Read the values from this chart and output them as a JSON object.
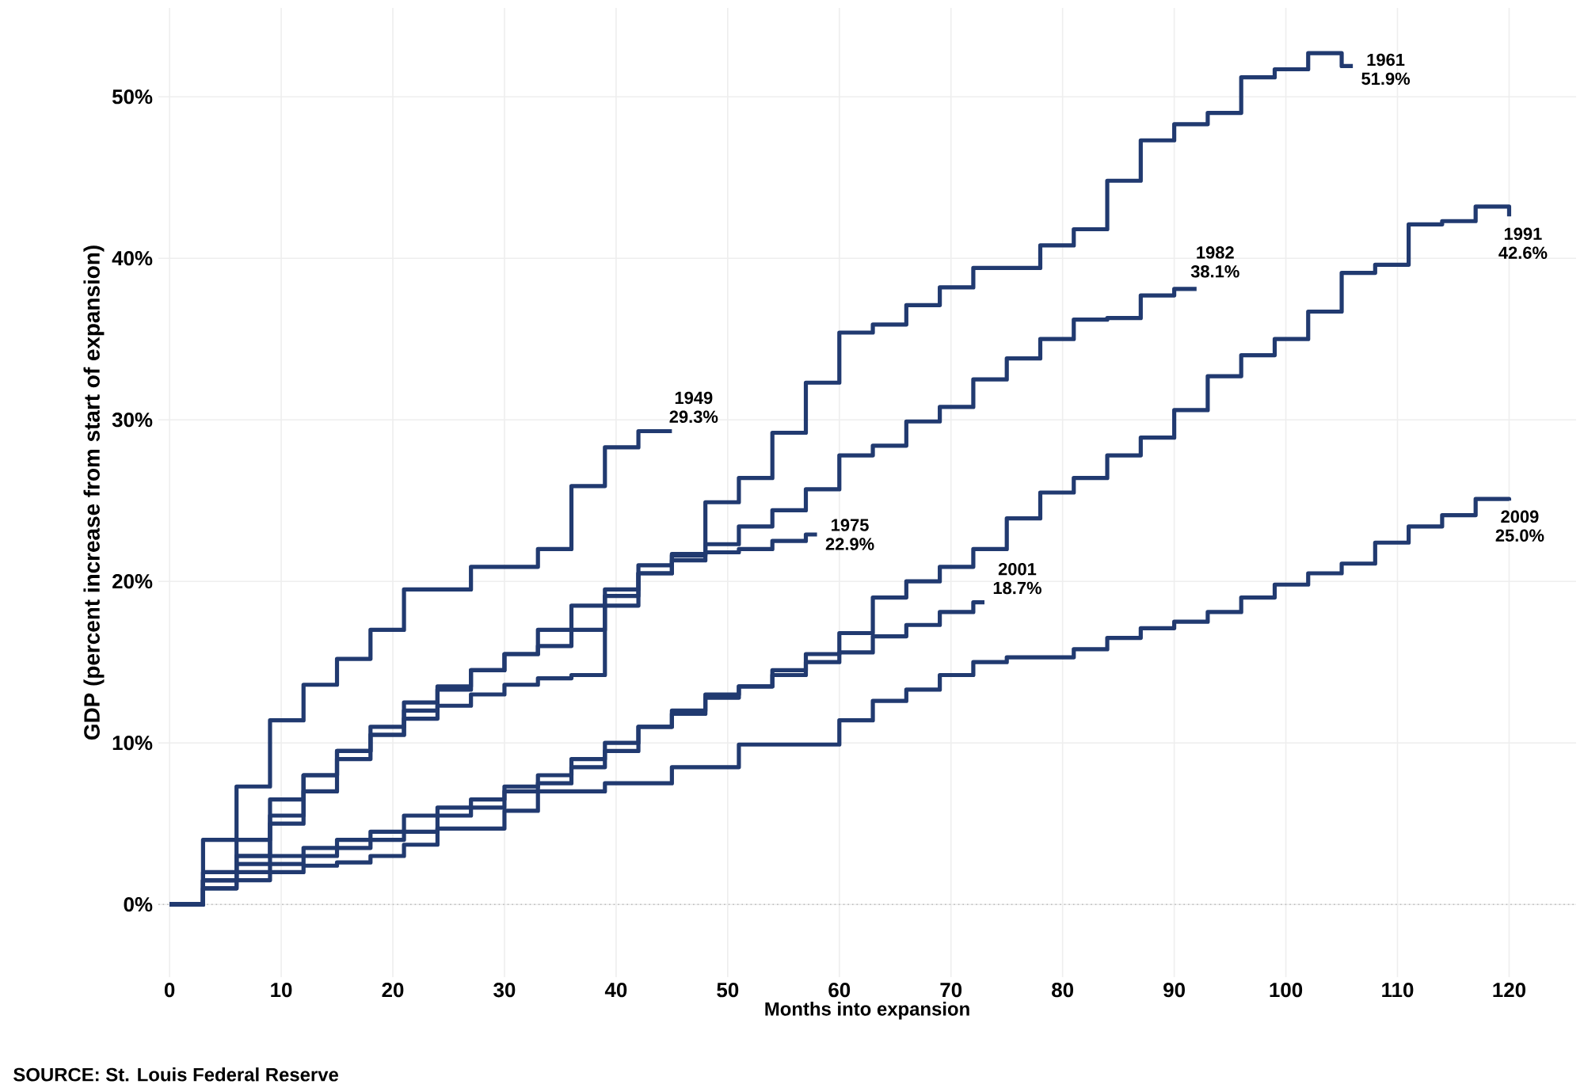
{
  "chart_data": {
    "type": "step",
    "xlabel": "Months into expansion",
    "ylabel": "GDP (percent increase from start of expansion)",
    "annotations": [
      "SOURCE: St. Louis Federal Reserve"
    ],
    "xlim": [
      -1,
      126
    ],
    "xticks": [
      0,
      10,
      20,
      30,
      40,
      50,
      60,
      70,
      80,
      90,
      100,
      110,
      120
    ],
    "ylim": [
      -4.5,
      55.5
    ],
    "yticks": [
      {
        "value": 0,
        "label": "0%"
      },
      {
        "value": 10,
        "label": "10%"
      },
      {
        "value": 20,
        "label": "20%"
      },
      {
        "value": 30,
        "label": "30%"
      },
      {
        "value": 40,
        "label": "40%"
      },
      {
        "value": 50,
        "label": "50%"
      }
    ],
    "grid": true,
    "marker": "none",
    "line_style": "solid",
    "ref_lines": [
      {
        "axis": "y",
        "value": 0,
        "line_style": "dotted",
        "color": "#bbbbbb"
      }
    ],
    "series": [
      {
        "name": "1949",
        "color": "#213a70",
        "x": [
          0,
          3,
          6,
          9,
          12,
          15,
          18,
          21,
          24,
          27,
          30,
          33,
          36,
          39,
          42,
          45
        ],
        "values": [
          0,
          4.0,
          7.3,
          11.4,
          13.6,
          15.2,
          17,
          19.5,
          19.5,
          20.9,
          20.9,
          22,
          25.9,
          28.3,
          29.3,
          29.3
        ],
        "value_labels": [
          null,
          null,
          null,
          null,
          null,
          null,
          null,
          null,
          null,
          null,
          null,
          null,
          null,
          null,
          null,
          "29.3%"
        ]
      },
      {
        "name": "1961",
        "color": "#213a70",
        "x": [
          0,
          3,
          6,
          9,
          12,
          15,
          18,
          21,
          24,
          27,
          30,
          33,
          36,
          39,
          42,
          45,
          48,
          51,
          54,
          57,
          60,
          63,
          66,
          69,
          72,
          75,
          78,
          81,
          84,
          87,
          90,
          93,
          96,
          99,
          102,
          105,
          106
        ],
        "values": [
          0,
          1.5,
          3,
          5.5,
          8,
          9.5,
          11,
          12.5,
          13.5,
          14.5,
          15.5,
          16,
          17,
          18.5,
          21,
          21.7,
          24.9,
          26.4,
          29.2,
          32.3,
          35.4,
          35.9,
          37.1,
          38.2,
          39.4,
          39.4,
          40.8,
          41.8,
          44.8,
          47.3,
          48.3,
          49.0,
          51.2,
          51.7,
          52.7,
          51.9,
          51.9
        ],
        "value_labels": [
          null,
          null,
          null,
          null,
          null,
          null,
          null,
          null,
          null,
          null,
          null,
          null,
          null,
          null,
          null,
          null,
          null,
          null,
          null,
          null,
          null,
          null,
          null,
          null,
          null,
          null,
          null,
          null,
          null,
          null,
          null,
          null,
          null,
          null,
          null,
          null,
          "51.9%"
        ]
      },
      {
        "name": "1975",
        "color": "#213a70",
        "x": [
          0,
          3,
          6,
          9,
          12,
          15,
          18,
          21,
          24,
          27,
          30,
          33,
          36,
          39,
          42,
          45,
          48,
          51,
          54,
          57,
          58
        ],
        "values": [
          0,
          2,
          4,
          6.5,
          8,
          9.5,
          10.5,
          11.5,
          12.3,
          13,
          13.6,
          14,
          14.2,
          19.1,
          20.5,
          21.6,
          21.8,
          22,
          22.5,
          22.9,
          22.9
        ],
        "value_labels": [
          null,
          null,
          null,
          null,
          null,
          null,
          null,
          null,
          null,
          null,
          null,
          null,
          null,
          null,
          null,
          null,
          null,
          null,
          null,
          null,
          "22.9%"
        ]
      },
      {
        "name": "1982",
        "color": "#213a70",
        "x": [
          0,
          3,
          6,
          9,
          12,
          15,
          18,
          21,
          24,
          27,
          30,
          33,
          36,
          39,
          42,
          45,
          48,
          51,
          54,
          57,
          60,
          63,
          66,
          69,
          72,
          75,
          78,
          81,
          84,
          87,
          90,
          92
        ],
        "values": [
          0,
          1.5,
          3,
          5,
          7,
          9,
          10.5,
          12,
          13.3,
          14.5,
          15.5,
          17,
          18.5,
          19.5,
          20.5,
          21.3,
          22.3,
          23.4,
          24.4,
          25.7,
          27.8,
          28.4,
          29.9,
          30.8,
          32.5,
          33.8,
          35,
          36.2,
          36.3,
          37.7,
          38.1,
          38.1
        ],
        "value_labels": [
          null,
          null,
          null,
          null,
          null,
          null,
          null,
          null,
          null,
          null,
          null,
          null,
          null,
          null,
          null,
          null,
          null,
          null,
          null,
          null,
          null,
          null,
          null,
          null,
          null,
          null,
          null,
          null,
          null,
          null,
          null,
          "38.1%"
        ]
      },
      {
        "name": "1991",
        "color": "#213a70",
        "x": [
          0,
          3,
          6,
          9,
          12,
          15,
          18,
          21,
          24,
          27,
          30,
          33,
          36,
          39,
          42,
          45,
          48,
          51,
          54,
          57,
          60,
          63,
          66,
          69,
          72,
          75,
          78,
          81,
          84,
          87,
          90,
          93,
          96,
          99,
          102,
          105,
          108,
          111,
          114,
          117,
          120
        ],
        "values": [
          0,
          1,
          2,
          2.5,
          3,
          3.5,
          4,
          4.5,
          5.5,
          6,
          7,
          7.5,
          8.5,
          9.5,
          11,
          12,
          13,
          13.5,
          14.5,
          15.5,
          16.8,
          19,
          20,
          20.9,
          22,
          23.9,
          25.5,
          26.4,
          27.8,
          28.9,
          30.6,
          32.7,
          34,
          35,
          36.7,
          39.1,
          39.6,
          42.1,
          42.3,
          43.2,
          42.6
        ],
        "value_labels": [
          null,
          null,
          null,
          null,
          null,
          null,
          null,
          null,
          null,
          null,
          null,
          null,
          null,
          null,
          null,
          null,
          null,
          null,
          null,
          null,
          null,
          null,
          null,
          null,
          null,
          null,
          null,
          null,
          null,
          null,
          null,
          null,
          null,
          null,
          null,
          null,
          null,
          null,
          null,
          null,
          "42.6%"
        ]
      },
      {
        "name": "2001",
        "color": "#213a70",
        "x": [
          0,
          3,
          6,
          9,
          12,
          15,
          18,
          21,
          24,
          27,
          30,
          33,
          36,
          39,
          42,
          45,
          48,
          51,
          54,
          57,
          60,
          63,
          66,
          69,
          72,
          73
        ],
        "values": [
          0,
          1.5,
          2.5,
          3,
          3.5,
          4,
          4.5,
          5.5,
          6,
          6.5,
          7.3,
          8,
          9,
          10,
          11,
          11.8,
          12.8,
          13.5,
          14.2,
          15,
          15.6,
          16.6,
          17.3,
          18.1,
          18.7,
          18.7
        ],
        "value_labels": [
          null,
          null,
          null,
          null,
          null,
          null,
          null,
          null,
          null,
          null,
          null,
          null,
          null,
          null,
          null,
          null,
          null,
          null,
          null,
          null,
          null,
          null,
          null,
          null,
          null,
          "18.7%"
        ]
      },
      {
        "name": "2009",
        "color": "#213a70",
        "x": [
          0,
          3,
          6,
          9,
          12,
          15,
          18,
          21,
          24,
          27,
          30,
          33,
          36,
          39,
          42,
          45,
          48,
          51,
          54,
          57,
          60,
          63,
          66,
          69,
          72,
          75,
          78,
          81,
          84,
          87,
          90,
          93,
          96,
          99,
          102,
          105,
          108,
          111,
          114,
          117,
          120
        ],
        "values": [
          0,
          1,
          1.5,
          2,
          2.4,
          2.6,
          3,
          3.7,
          4.7,
          4.7,
          5.8,
          7.0,
          7.0,
          7.5,
          7.5,
          8.5,
          8.5,
          9.9,
          9.9,
          9.9,
          11.4,
          12.6,
          13.3,
          14.2,
          15,
          15.3,
          15.3,
          15.8,
          16.5,
          17.1,
          17.5,
          18.1,
          19,
          19.8,
          20.5,
          21.1,
          22.4,
          23.4,
          24.1,
          25.1,
          25.0
        ],
        "value_labels": [
          null,
          null,
          null,
          null,
          null,
          null,
          null,
          null,
          null,
          null,
          null,
          null,
          null,
          null,
          null,
          null,
          null,
          null,
          null,
          null,
          null,
          null,
          null,
          null,
          null,
          null,
          null,
          null,
          null,
          null,
          null,
          null,
          null,
          null,
          null,
          null,
          null,
          null,
          null,
          null,
          "25.0%"
        ]
      }
    ]
  }
}
